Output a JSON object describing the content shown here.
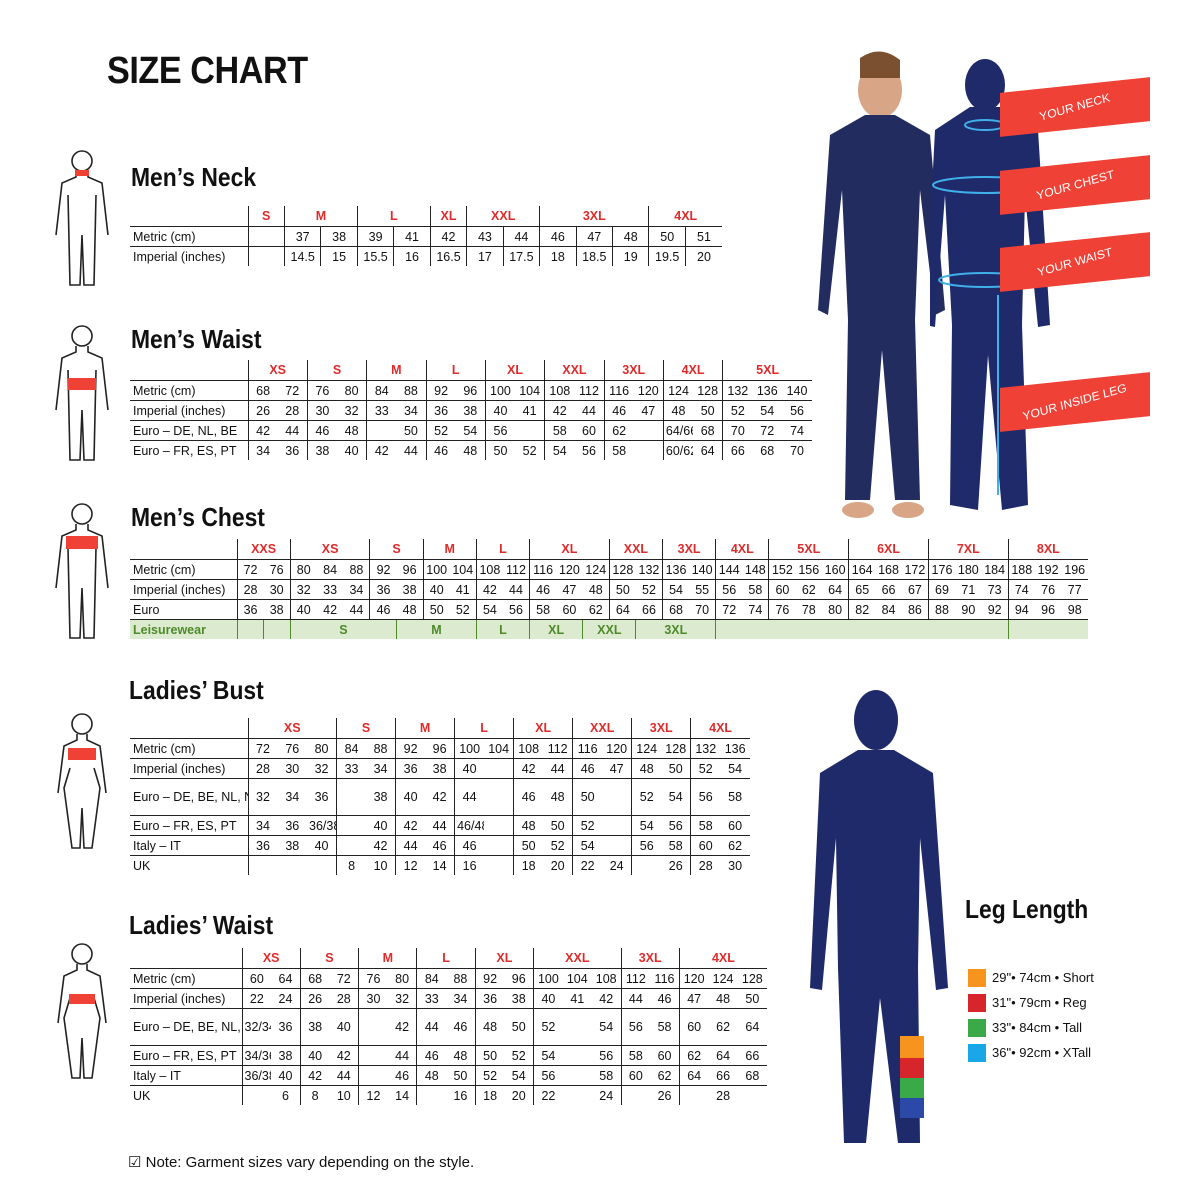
{
  "title": "SIZE CHART",
  "colors": {
    "size_header": "#e02b2b",
    "banner": "#ef4136",
    "navy": "#1f2a6b",
    "leisure_bg": "#dcebd0",
    "leisure_text": "#4e8a2a"
  },
  "figure_labels": {
    "neck": "YOUR NECK",
    "chest": "YOUR CHEST",
    "waist": "YOUR WAIST",
    "inside_leg": "YOUR INSIDE LEG"
  },
  "tables": [
    {
      "id": "mens-neck",
      "heading": "Men’s Neck",
      "groups": [
        {
          "label": "S",
          "span": 1
        },
        {
          "label": "M",
          "span": 2
        },
        {
          "label": "L",
          "span": 2
        },
        {
          "label": "XL",
          "span": 1
        },
        {
          "label": "XXL",
          "span": 2
        },
        {
          "label": "3XL",
          "span": 3
        },
        {
          "label": "4XL",
          "span": 2
        }
      ],
      "rows": [
        {
          "label": "Metric (cm)",
          "cells": [
            "",
            "37",
            "38",
            "39",
            "41",
            "42",
            "43",
            "44",
            "46",
            "47",
            "48",
            "50",
            "51"
          ]
        },
        {
          "label": "Imperial (inches)",
          "cells": [
            "",
            "14.5",
            "15",
            "15.5",
            "16",
            "16.5",
            "17",
            "17.5",
            "18",
            "18.5",
            "19",
            "19.5",
            "20"
          ]
        }
      ]
    },
    {
      "id": "mens-waist",
      "heading": "Men’s Waist",
      "groups": [
        {
          "label": "XS",
          "span": 2
        },
        {
          "label": "S",
          "span": 2
        },
        {
          "label": "M",
          "span": 2
        },
        {
          "label": "L",
          "span": 2
        },
        {
          "label": "XL",
          "span": 2
        },
        {
          "label": "XXL",
          "span": 2
        },
        {
          "label": "3XL",
          "span": 2
        },
        {
          "label": "4XL",
          "span": 2
        },
        {
          "label": "5XL",
          "span": 3
        }
      ],
      "rows": [
        {
          "label": "Metric (cm)",
          "cells": [
            "68",
            "72",
            "76",
            "80",
            "84",
            "88",
            "92",
            "96",
            "100",
            "104",
            "108",
            "112",
            "116",
            "120",
            "124",
            "128",
            "132",
            "136",
            "140"
          ]
        },
        {
          "label": "Imperial (inches)",
          "cells": [
            "26",
            "28",
            "30",
            "32",
            "33",
            "34",
            "36",
            "38",
            "40",
            "41",
            "42",
            "44",
            "46",
            "47",
            "48",
            "50",
            "52",
            "54",
            "56"
          ]
        },
        {
          "label": "Euro – DE, NL, BE",
          "cells": [
            "42",
            "44",
            "46",
            "48",
            "",
            "50",
            "52",
            "54",
            "56",
            "",
            "58",
            "60",
            "62",
            "",
            "64/66",
            "68",
            "70",
            "72",
            "74"
          ]
        },
        {
          "label": "Euro – FR, ES, PT",
          "cells": [
            "34",
            "36",
            "38",
            "40",
            "42",
            "44",
            "46",
            "48",
            "50",
            "52",
            "54",
            "56",
            "58",
            "",
            "60/62",
            "64",
            "66",
            "68",
            "70"
          ]
        }
      ]
    },
    {
      "id": "mens-chest",
      "heading": "Men’s Chest",
      "groups": [
        {
          "label": "XXS",
          "span": 2
        },
        {
          "label": "XS",
          "span": 3
        },
        {
          "label": "S",
          "span": 2
        },
        {
          "label": "M",
          "span": 2
        },
        {
          "label": "L",
          "span": 2
        },
        {
          "label": "XL",
          "span": 3
        },
        {
          "label": "XXL",
          "span": 2
        },
        {
          "label": "3XL",
          "span": 2
        },
        {
          "label": "4XL",
          "span": 2
        },
        {
          "label": "5XL",
          "span": 3
        },
        {
          "label": "6XL",
          "span": 3
        },
        {
          "label": "7XL",
          "span": 3
        },
        {
          "label": "8XL",
          "span": 3
        }
      ],
      "rows": [
        {
          "label": "Metric (cm)",
          "cells": [
            "72",
            "76",
            "80",
            "84",
            "88",
            "92",
            "96",
            "100",
            "104",
            "108",
            "112",
            "116",
            "120",
            "124",
            "128",
            "132",
            "136",
            "140",
            "144",
            "148",
            "152",
            "156",
            "160",
            "164",
            "168",
            "172",
            "176",
            "180",
            "184",
            "188",
            "192",
            "196"
          ]
        },
        {
          "label": "Imperial (inches)",
          "cells": [
            "28",
            "30",
            "32",
            "33",
            "34",
            "36",
            "38",
            "40",
            "41",
            "42",
            "44",
            "46",
            "47",
            "48",
            "50",
            "52",
            "54",
            "55",
            "56",
            "58",
            "60",
            "62",
            "64",
            "65",
            "66",
            "67",
            "69",
            "71",
            "73",
            "74",
            "76",
            "77"
          ]
        },
        {
          "label": "Euro",
          "cells": [
            "36",
            "38",
            "40",
            "42",
            "44",
            "46",
            "48",
            "50",
            "52",
            "54",
            "56",
            "58",
            "60",
            "62",
            "64",
            "66",
            "68",
            "70",
            "72",
            "74",
            "76",
            "78",
            "80",
            "82",
            "84",
            "86",
            "88",
            "90",
            "92",
            "94",
            "96",
            "98"
          ]
        },
        {
          "label": "Leisurewear",
          "style": "green",
          "spans": [
            {
              "v": "",
              "span": 1
            },
            {
              "v": "",
              "span": 1
            },
            {
              "v": "S",
              "span": 4
            },
            {
              "v": "M",
              "span": 3
            },
            {
              "v": "L",
              "span": 2
            },
            {
              "v": "XL",
              "span": 2
            },
            {
              "v": "XXL",
              "span": 2
            },
            {
              "v": "3XL",
              "span": 3
            },
            {
              "v": "",
              "span": 11
            },
            {
              "v": "",
              "span": 3
            }
          ]
        }
      ]
    },
    {
      "id": "ladies-bust",
      "heading": "Ladies’ Bust",
      "groups": [
        {
          "label": "XS",
          "span": 3
        },
        {
          "label": "S",
          "span": 2
        },
        {
          "label": "M",
          "span": 2
        },
        {
          "label": "L",
          "span": 2
        },
        {
          "label": "XL",
          "span": 2
        },
        {
          "label": "XXL",
          "span": 2
        },
        {
          "label": "3XL",
          "span": 2
        },
        {
          "label": "4XL",
          "span": 2
        }
      ],
      "rows": [
        {
          "label": "Metric (cm)",
          "cells": [
            "72",
            "76",
            "80",
            "84",
            "88",
            "92",
            "96",
            "100",
            "104",
            "108",
            "112",
            "116",
            "120",
            "124",
            "128",
            "132",
            "136"
          ]
        },
        {
          "label": "Imperial (inches)",
          "cells": [
            "28",
            "30",
            "32",
            "33",
            "34",
            "36",
            "38",
            "40",
            "",
            "42",
            "44",
            "46",
            "47",
            "48",
            "50",
            "52",
            "54"
          ]
        },
        {
          "label": "Euro –  DE, BE, NL, NO, SV, DK",
          "style": "tall",
          "cells": [
            "32",
            "34",
            "36",
            "",
            "38",
            "40",
            "42",
            "44",
            "",
            "46",
            "48",
            "50",
            "",
            "52",
            "54",
            "56",
            "58"
          ]
        },
        {
          "label": "Euro – FR, ES, PT",
          "cells": [
            "34",
            "36",
            "36/38",
            "",
            "40",
            "42",
            "44",
            "46/48",
            "",
            "48",
            "50",
            "52",
            "",
            "54",
            "56",
            "58",
            "60"
          ]
        },
        {
          "label": "Italy – IT",
          "cells": [
            "36",
            "38",
            "40",
            "",
            "42",
            "44",
            "46",
            "46",
            "",
            "50",
            "52",
            "54",
            "",
            "56",
            "58",
            "60",
            "62"
          ]
        },
        {
          "label": "UK",
          "cells": [
            "",
            "",
            "",
            "8",
            "10",
            "12",
            "14",
            "16",
            "",
            "18",
            "20",
            "22",
            "24",
            "",
            "26",
            "28",
            "30"
          ]
        }
      ]
    },
    {
      "id": "ladies-waist",
      "heading": "Ladies’ Waist",
      "groups": [
        {
          "label": "XS",
          "span": 2
        },
        {
          "label": "S",
          "span": 2
        },
        {
          "label": "M",
          "span": 2
        },
        {
          "label": "L",
          "span": 2
        },
        {
          "label": "XL",
          "span": 2
        },
        {
          "label": "XXL",
          "span": 3
        },
        {
          "label": "3XL",
          "span": 2
        },
        {
          "label": "4XL",
          "span": 3
        }
      ],
      "rows": [
        {
          "label": "Metric (cm)",
          "cells": [
            "60",
            "64",
            "68",
            "72",
            "76",
            "80",
            "84",
            "88",
            "92",
            "96",
            "100",
            "104",
            "108",
            "112",
            "116",
            "120",
            "124",
            "128"
          ]
        },
        {
          "label": "Imperial (inches)",
          "cells": [
            "22",
            "24",
            "26",
            "28",
            "30",
            "32",
            "33",
            "34",
            "36",
            "38",
            "40",
            "41",
            "42",
            "44",
            "46",
            "47",
            "48",
            "50"
          ]
        },
        {
          "label": "Euro – DE, BE, NL, NO, SV, DK",
          "style": "tall",
          "cells": [
            "32/34",
            "36",
            "38",
            "40",
            "",
            "42",
            "44",
            "46",
            "48",
            "50",
            "52",
            "",
            "54",
            "56",
            "58",
            "60",
            "62",
            "64"
          ]
        },
        {
          "label": "Euro – FR, ES, PT",
          "cells": [
            "34/36",
            "38",
            "40",
            "42",
            "",
            "44",
            "46",
            "48",
            "50",
            "52",
            "54",
            "",
            "56",
            "58",
            "60",
            "62",
            "64",
            "66"
          ]
        },
        {
          "label": "Italy – IT",
          "cells": [
            "36/38",
            "40",
            "42",
            "44",
            "",
            "46",
            "48",
            "50",
            "52",
            "54",
            "56",
            "",
            "58",
            "60",
            "62",
            "64",
            "66",
            "68"
          ]
        },
        {
          "label": "UK",
          "cells": [
            "",
            "6",
            "8",
            "10",
            "12",
            "14",
            "",
            "16",
            "18",
            "20",
            "22",
            "",
            "24",
            "",
            "26",
            "",
            "28",
            ""
          ]
        }
      ]
    }
  ],
  "leg_length": {
    "heading": "Leg Length",
    "items": [
      {
        "label": "29\"• 74cm • Short",
        "color": "#f7941d"
      },
      {
        "label": "31\"• 79cm • Reg",
        "color": "#d7262b"
      },
      {
        "label": "33\"• 84cm • Tall",
        "color": "#3aaa48"
      },
      {
        "label": "36\"• 92cm • XTall",
        "color": "#19a7e8"
      }
    ]
  },
  "note": "Note: Garment sizes vary depending on the style."
}
